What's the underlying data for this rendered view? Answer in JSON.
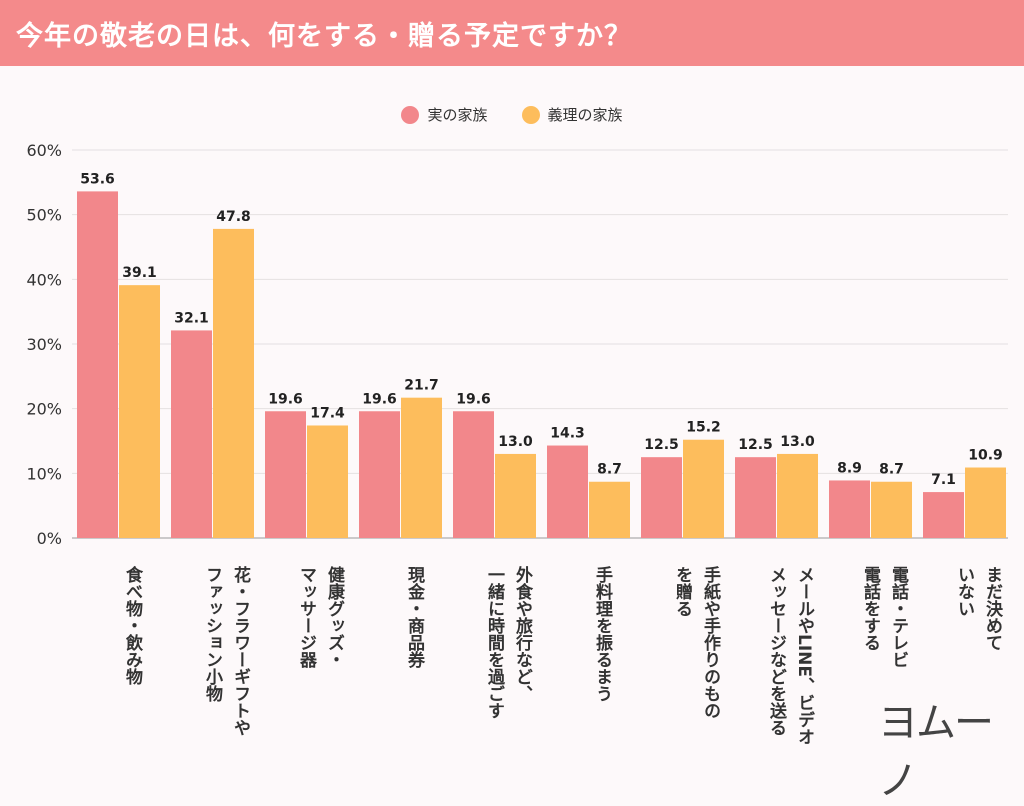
{
  "header": {
    "title": "今年の敬老の日は、何をする・贈る予定ですか？"
  },
  "colors": {
    "header": "#f48a8b",
    "series1": "#f2878b",
    "series2": "#fdbd5c"
  },
  "logo": {
    "text": "ヨムーノ"
  },
  "chart_data": {
    "type": "bar",
    "title": "今年の敬老の日は、何をする・贈る予定ですか？",
    "categories": [
      "食べ物・飲み物",
      "花・フラワーギフトや\nファッション小物",
      "健康グッズ・\nマッサージ器",
      "現金・商品券",
      "外食や旅行など、\n一緒に時間を過ごす",
      "手料理を振るまう",
      "手紙や手作りのもの\nを贈る",
      "メールやLINE、ビデオ\nメッセージなどを送る",
      "電話・テレビ\n電話をする",
      "まだ決めて\nいない"
    ],
    "series": [
      {
        "name": "実の家族",
        "values": [
          53.6,
          32.1,
          19.6,
          19.6,
          19.6,
          14.3,
          12.5,
          12.5,
          8.9,
          7.1
        ]
      },
      {
        "name": "義理の家族",
        "values": [
          39.1,
          47.8,
          17.4,
          21.7,
          13.0,
          8.7,
          15.2,
          13.0,
          8.7,
          10.9
        ]
      }
    ],
    "ylim": [
      0,
      60
    ],
    "yticks": [
      "0%",
      "10%",
      "20%",
      "30%",
      "40%",
      "50%",
      "60%"
    ],
    "grid": true,
    "legend": "top-center"
  }
}
